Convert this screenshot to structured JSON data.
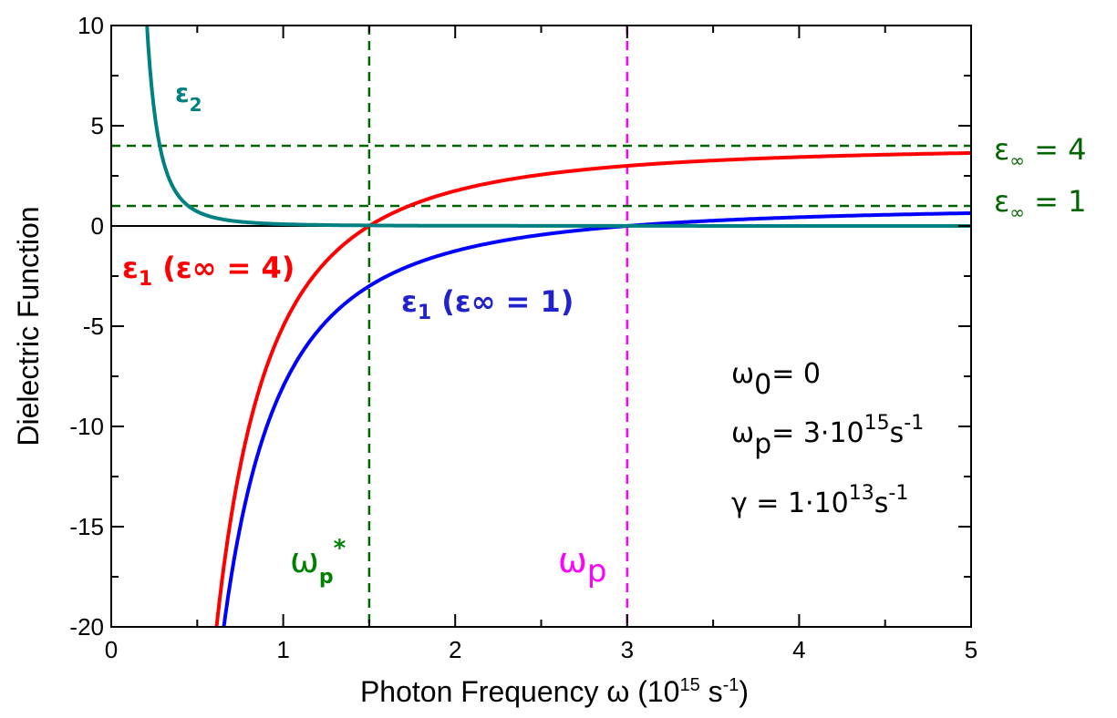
{
  "chart_data": {
    "type": "line",
    "xlabel": "Photon Frequency ω (10^15 s^-1)",
    "xlabel_parts": {
      "text": "Photon Frequency ω (10",
      "sup1": "15",
      "mid": " s",
      "sup2": "-1",
      "end": ")"
    },
    "ylabel": "Dielectric Function",
    "xlim": [
      0,
      5
    ],
    "ylim": [
      -20,
      10
    ],
    "x_ticks": [
      "0",
      "1",
      "2",
      "3",
      "4",
      "5"
    ],
    "y_ticks": [
      "10",
      "5",
      "0",
      "-5",
      "-10",
      "-15",
      "-20"
    ],
    "parameters": {
      "omega0": 0,
      "omega_p": 3,
      "gamma": 0.01
    },
    "series": [
      {
        "name": "ε₁ (ε∞ = 4)",
        "color": "#ff0000",
        "eps_inf": 4,
        "x": [
          0.6,
          0.8,
          1.0,
          1.2,
          1.5,
          2.0,
          2.5,
          3.0,
          4.0,
          5.0
        ],
        "values": [
          -21.0,
          -10.06,
          -5.0,
          -2.25,
          0.0,
          1.75,
          2.56,
          3.0,
          3.44,
          3.64
        ]
      },
      {
        "name": "ε₁ (ε∞ = 1)",
        "color": "#0000ff",
        "eps_inf": 1,
        "x": [
          0.62,
          0.8,
          1.0,
          1.2,
          1.5,
          2.0,
          2.5,
          3.0,
          4.0,
          5.0
        ],
        "values": [
          -22.4,
          -13.06,
          -8.0,
          -5.25,
          -3.0,
          -1.25,
          -0.44,
          0.0,
          0.44,
          0.64
        ]
      },
      {
        "name": "ε₂",
        "color": "#008080",
        "x": [
          0.18,
          0.2,
          0.3,
          0.4,
          0.5,
          0.75,
          1.0,
          2.0,
          3.0,
          5.0
        ],
        "values": [
          9.7,
          7.5,
          3.33,
          1.41,
          0.72,
          0.21,
          0.09,
          0.01,
          0.0,
          0.0
        ]
      }
    ],
    "reference_lines": [
      {
        "axis": "y",
        "value": 4,
        "color": "#006400",
        "style": "dashed",
        "label": "ε∞ = 4"
      },
      {
        "axis": "y",
        "value": 1,
        "color": "#006400",
        "style": "dashed",
        "label": "ε∞ = 1"
      },
      {
        "axis": "y",
        "value": 0,
        "color": "#000000",
        "style": "solid"
      },
      {
        "axis": "x",
        "value": 1.5,
        "color": "#006400",
        "style": "dashed",
        "label": "ωp*"
      },
      {
        "axis": "x",
        "value": 3,
        "color": "#ff00ff",
        "style": "dashed",
        "label": "ωp"
      }
    ],
    "annotations": {
      "eps2_label": {
        "main": "ε",
        "sub": "2",
        "color": "#008080"
      },
      "eps1_inf4_label": {
        "main": "ε",
        "sub": "1",
        "rest": " (ε∞ = 4)",
        "color": "#ff0000"
      },
      "eps1_inf1_label": {
        "main": "ε",
        "sub": "1",
        "rest": " (ε∞ = 1)",
        "color": "#0000ff"
      },
      "omega_p_star_label": {
        "main": "ω",
        "sub": "p",
        "sup": "*",
        "color": "#008000"
      },
      "omega_p_label": {
        "main": "ω",
        "sub": "p",
        "color": "#ff00ff"
      },
      "eps_inf4_right": {
        "main": "ε",
        "sub": "∞",
        "rest": " = 4",
        "color": "#006400"
      },
      "eps_inf1_right": {
        "main": "ε",
        "sub": "∞",
        "rest": " = 1",
        "color": "#006400"
      },
      "param_omega0": {
        "main": "ω",
        "sub": "0",
        "rest": "= 0"
      },
      "param_omegap": {
        "main": "ω",
        "sub": "p",
        "rest": "= 3·10",
        "sup": "15",
        "unit": "s",
        "unit_sup": "-1"
      },
      "param_gamma": {
        "main": "γ = 1·10",
        "sup": "13",
        "unit": "s",
        "unit_sup": "-1"
      }
    }
  }
}
